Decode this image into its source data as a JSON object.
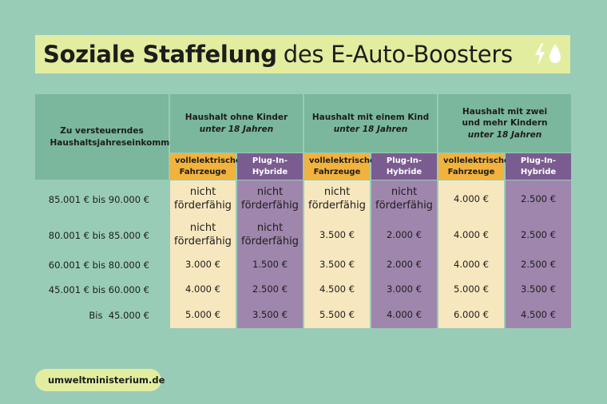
{
  "title": {
    "bold": "Soziale Staffelung",
    "rest": "des E-Auto-Boosters",
    "icons": [
      "lightning-icon",
      "drop-icon"
    ]
  },
  "table": {
    "income_header": "Zu versteuerndes Haushaltsjahreseinkommen",
    "groups": [
      {
        "line1": "Haushalt ohne Kinder",
        "line2": "",
        "italic": "unter 18 Jahren"
      },
      {
        "line1": "Haushalt mit einem Kind",
        "line2": "",
        "italic": "unter 18 Jahren"
      },
      {
        "line1": "Haushalt mit zwei",
        "line2": "und mehr Kindern",
        "italic": "unter 18 Jahren"
      }
    ],
    "sub_elec": "vollelektrische Fahrzeuge",
    "sub_plug": "Plug-In-Hybride",
    "rows": [
      {
        "income": "85.001 € bis 90.000 €",
        "values": [
          "nicht förderfähig",
          "nicht förderfähig",
          "nicht förderfähig",
          "nicht förderfähig",
          "4.000 €",
          "2.500 €"
        ]
      },
      {
        "income": "80.001 € bis 85.000 €",
        "values": [
          "nicht förderfähig",
          "nicht förderfähig",
          "3.500 €",
          "2.000 €",
          "4.000 €",
          "2.500 €"
        ]
      },
      {
        "income": "60.001 € bis 80.000 €",
        "values": [
          "3.000 €",
          "1.500 €",
          "3.500 €",
          "2.000 €",
          "4.000 €",
          "2.500 €"
        ]
      },
      {
        "income": "45.001 € bis 60.000 €",
        "values": [
          "4.000 €",
          "2.500 €",
          "4.500 €",
          "3.000 €",
          "5.000 €",
          "3.500 €"
        ]
      },
      {
        "income": "Bis  45.000 €",
        "values": [
          "5.000 €",
          "3.500 €",
          "5.500 €",
          "4.000 €",
          "6.000 €",
          "4.500 €"
        ]
      }
    ]
  },
  "footer": {
    "site": "umweltministerium.de",
    "icon": "leaf-icon"
  },
  "colors": {
    "background": "#98ccb6",
    "title_bg": "#e3eda0",
    "header": "#7ab79c",
    "elec_header": "#f2b23e",
    "plug_header": "#7b5c91",
    "elec_col": "#f7e7bf",
    "plug_col": "#9f86ad"
  }
}
